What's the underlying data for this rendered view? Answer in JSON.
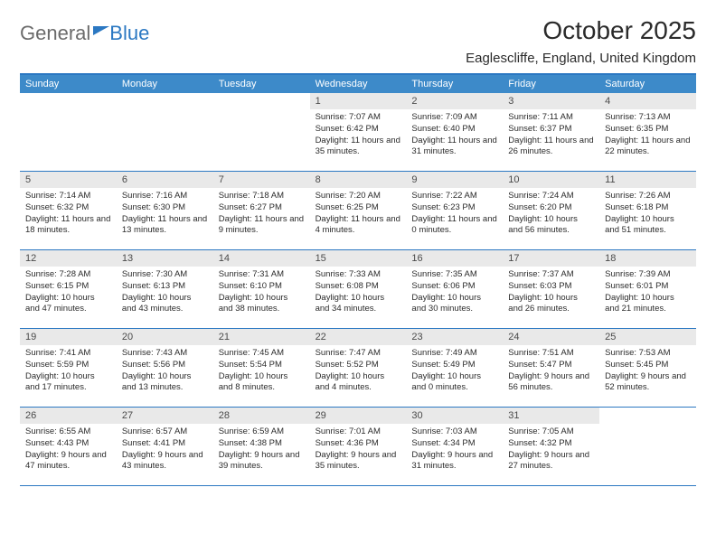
{
  "brand": {
    "text1": "General",
    "text2": "Blue"
  },
  "title": "October 2025",
  "location": "Eaglescliffe, England, United Kingdom",
  "colors": {
    "header_bg": "#3d8ac9",
    "border": "#2b78c2",
    "daynum_bg": "#e9e9e9",
    "text": "#2b2b2b",
    "logo_gray": "#6b6b6b"
  },
  "day_names": [
    "Sunday",
    "Monday",
    "Tuesday",
    "Wednesday",
    "Thursday",
    "Friday",
    "Saturday"
  ],
  "weeks": [
    [
      {
        "n": "",
        "sunrise": "",
        "sunset": "",
        "daylight": ""
      },
      {
        "n": "",
        "sunrise": "",
        "sunset": "",
        "daylight": ""
      },
      {
        "n": "",
        "sunrise": "",
        "sunset": "",
        "daylight": ""
      },
      {
        "n": "1",
        "sunrise": "Sunrise: 7:07 AM",
        "sunset": "Sunset: 6:42 PM",
        "daylight": "Daylight: 11 hours and 35 minutes."
      },
      {
        "n": "2",
        "sunrise": "Sunrise: 7:09 AM",
        "sunset": "Sunset: 6:40 PM",
        "daylight": "Daylight: 11 hours and 31 minutes."
      },
      {
        "n": "3",
        "sunrise": "Sunrise: 7:11 AM",
        "sunset": "Sunset: 6:37 PM",
        "daylight": "Daylight: 11 hours and 26 minutes."
      },
      {
        "n": "4",
        "sunrise": "Sunrise: 7:13 AM",
        "sunset": "Sunset: 6:35 PM",
        "daylight": "Daylight: 11 hours and 22 minutes."
      }
    ],
    [
      {
        "n": "5",
        "sunrise": "Sunrise: 7:14 AM",
        "sunset": "Sunset: 6:32 PM",
        "daylight": "Daylight: 11 hours and 18 minutes."
      },
      {
        "n": "6",
        "sunrise": "Sunrise: 7:16 AM",
        "sunset": "Sunset: 6:30 PM",
        "daylight": "Daylight: 11 hours and 13 minutes."
      },
      {
        "n": "7",
        "sunrise": "Sunrise: 7:18 AM",
        "sunset": "Sunset: 6:27 PM",
        "daylight": "Daylight: 11 hours and 9 minutes."
      },
      {
        "n": "8",
        "sunrise": "Sunrise: 7:20 AM",
        "sunset": "Sunset: 6:25 PM",
        "daylight": "Daylight: 11 hours and 4 minutes."
      },
      {
        "n": "9",
        "sunrise": "Sunrise: 7:22 AM",
        "sunset": "Sunset: 6:23 PM",
        "daylight": "Daylight: 11 hours and 0 minutes."
      },
      {
        "n": "10",
        "sunrise": "Sunrise: 7:24 AM",
        "sunset": "Sunset: 6:20 PM",
        "daylight": "Daylight: 10 hours and 56 minutes."
      },
      {
        "n": "11",
        "sunrise": "Sunrise: 7:26 AM",
        "sunset": "Sunset: 6:18 PM",
        "daylight": "Daylight: 10 hours and 51 minutes."
      }
    ],
    [
      {
        "n": "12",
        "sunrise": "Sunrise: 7:28 AM",
        "sunset": "Sunset: 6:15 PM",
        "daylight": "Daylight: 10 hours and 47 minutes."
      },
      {
        "n": "13",
        "sunrise": "Sunrise: 7:30 AM",
        "sunset": "Sunset: 6:13 PM",
        "daylight": "Daylight: 10 hours and 43 minutes."
      },
      {
        "n": "14",
        "sunrise": "Sunrise: 7:31 AM",
        "sunset": "Sunset: 6:10 PM",
        "daylight": "Daylight: 10 hours and 38 minutes."
      },
      {
        "n": "15",
        "sunrise": "Sunrise: 7:33 AM",
        "sunset": "Sunset: 6:08 PM",
        "daylight": "Daylight: 10 hours and 34 minutes."
      },
      {
        "n": "16",
        "sunrise": "Sunrise: 7:35 AM",
        "sunset": "Sunset: 6:06 PM",
        "daylight": "Daylight: 10 hours and 30 minutes."
      },
      {
        "n": "17",
        "sunrise": "Sunrise: 7:37 AM",
        "sunset": "Sunset: 6:03 PM",
        "daylight": "Daylight: 10 hours and 26 minutes."
      },
      {
        "n": "18",
        "sunrise": "Sunrise: 7:39 AM",
        "sunset": "Sunset: 6:01 PM",
        "daylight": "Daylight: 10 hours and 21 minutes."
      }
    ],
    [
      {
        "n": "19",
        "sunrise": "Sunrise: 7:41 AM",
        "sunset": "Sunset: 5:59 PM",
        "daylight": "Daylight: 10 hours and 17 minutes."
      },
      {
        "n": "20",
        "sunrise": "Sunrise: 7:43 AM",
        "sunset": "Sunset: 5:56 PM",
        "daylight": "Daylight: 10 hours and 13 minutes."
      },
      {
        "n": "21",
        "sunrise": "Sunrise: 7:45 AM",
        "sunset": "Sunset: 5:54 PM",
        "daylight": "Daylight: 10 hours and 8 minutes."
      },
      {
        "n": "22",
        "sunrise": "Sunrise: 7:47 AM",
        "sunset": "Sunset: 5:52 PM",
        "daylight": "Daylight: 10 hours and 4 minutes."
      },
      {
        "n": "23",
        "sunrise": "Sunrise: 7:49 AM",
        "sunset": "Sunset: 5:49 PM",
        "daylight": "Daylight: 10 hours and 0 minutes."
      },
      {
        "n": "24",
        "sunrise": "Sunrise: 7:51 AM",
        "sunset": "Sunset: 5:47 PM",
        "daylight": "Daylight: 9 hours and 56 minutes."
      },
      {
        "n": "25",
        "sunrise": "Sunrise: 7:53 AM",
        "sunset": "Sunset: 5:45 PM",
        "daylight": "Daylight: 9 hours and 52 minutes."
      }
    ],
    [
      {
        "n": "26",
        "sunrise": "Sunrise: 6:55 AM",
        "sunset": "Sunset: 4:43 PM",
        "daylight": "Daylight: 9 hours and 47 minutes."
      },
      {
        "n": "27",
        "sunrise": "Sunrise: 6:57 AM",
        "sunset": "Sunset: 4:41 PM",
        "daylight": "Daylight: 9 hours and 43 minutes."
      },
      {
        "n": "28",
        "sunrise": "Sunrise: 6:59 AM",
        "sunset": "Sunset: 4:38 PM",
        "daylight": "Daylight: 9 hours and 39 minutes."
      },
      {
        "n": "29",
        "sunrise": "Sunrise: 7:01 AM",
        "sunset": "Sunset: 4:36 PM",
        "daylight": "Daylight: 9 hours and 35 minutes."
      },
      {
        "n": "30",
        "sunrise": "Sunrise: 7:03 AM",
        "sunset": "Sunset: 4:34 PM",
        "daylight": "Daylight: 9 hours and 31 minutes."
      },
      {
        "n": "31",
        "sunrise": "Sunrise: 7:05 AM",
        "sunset": "Sunset: 4:32 PM",
        "daylight": "Daylight: 9 hours and 27 minutes."
      },
      {
        "n": "",
        "sunrise": "",
        "sunset": "",
        "daylight": ""
      }
    ]
  ]
}
